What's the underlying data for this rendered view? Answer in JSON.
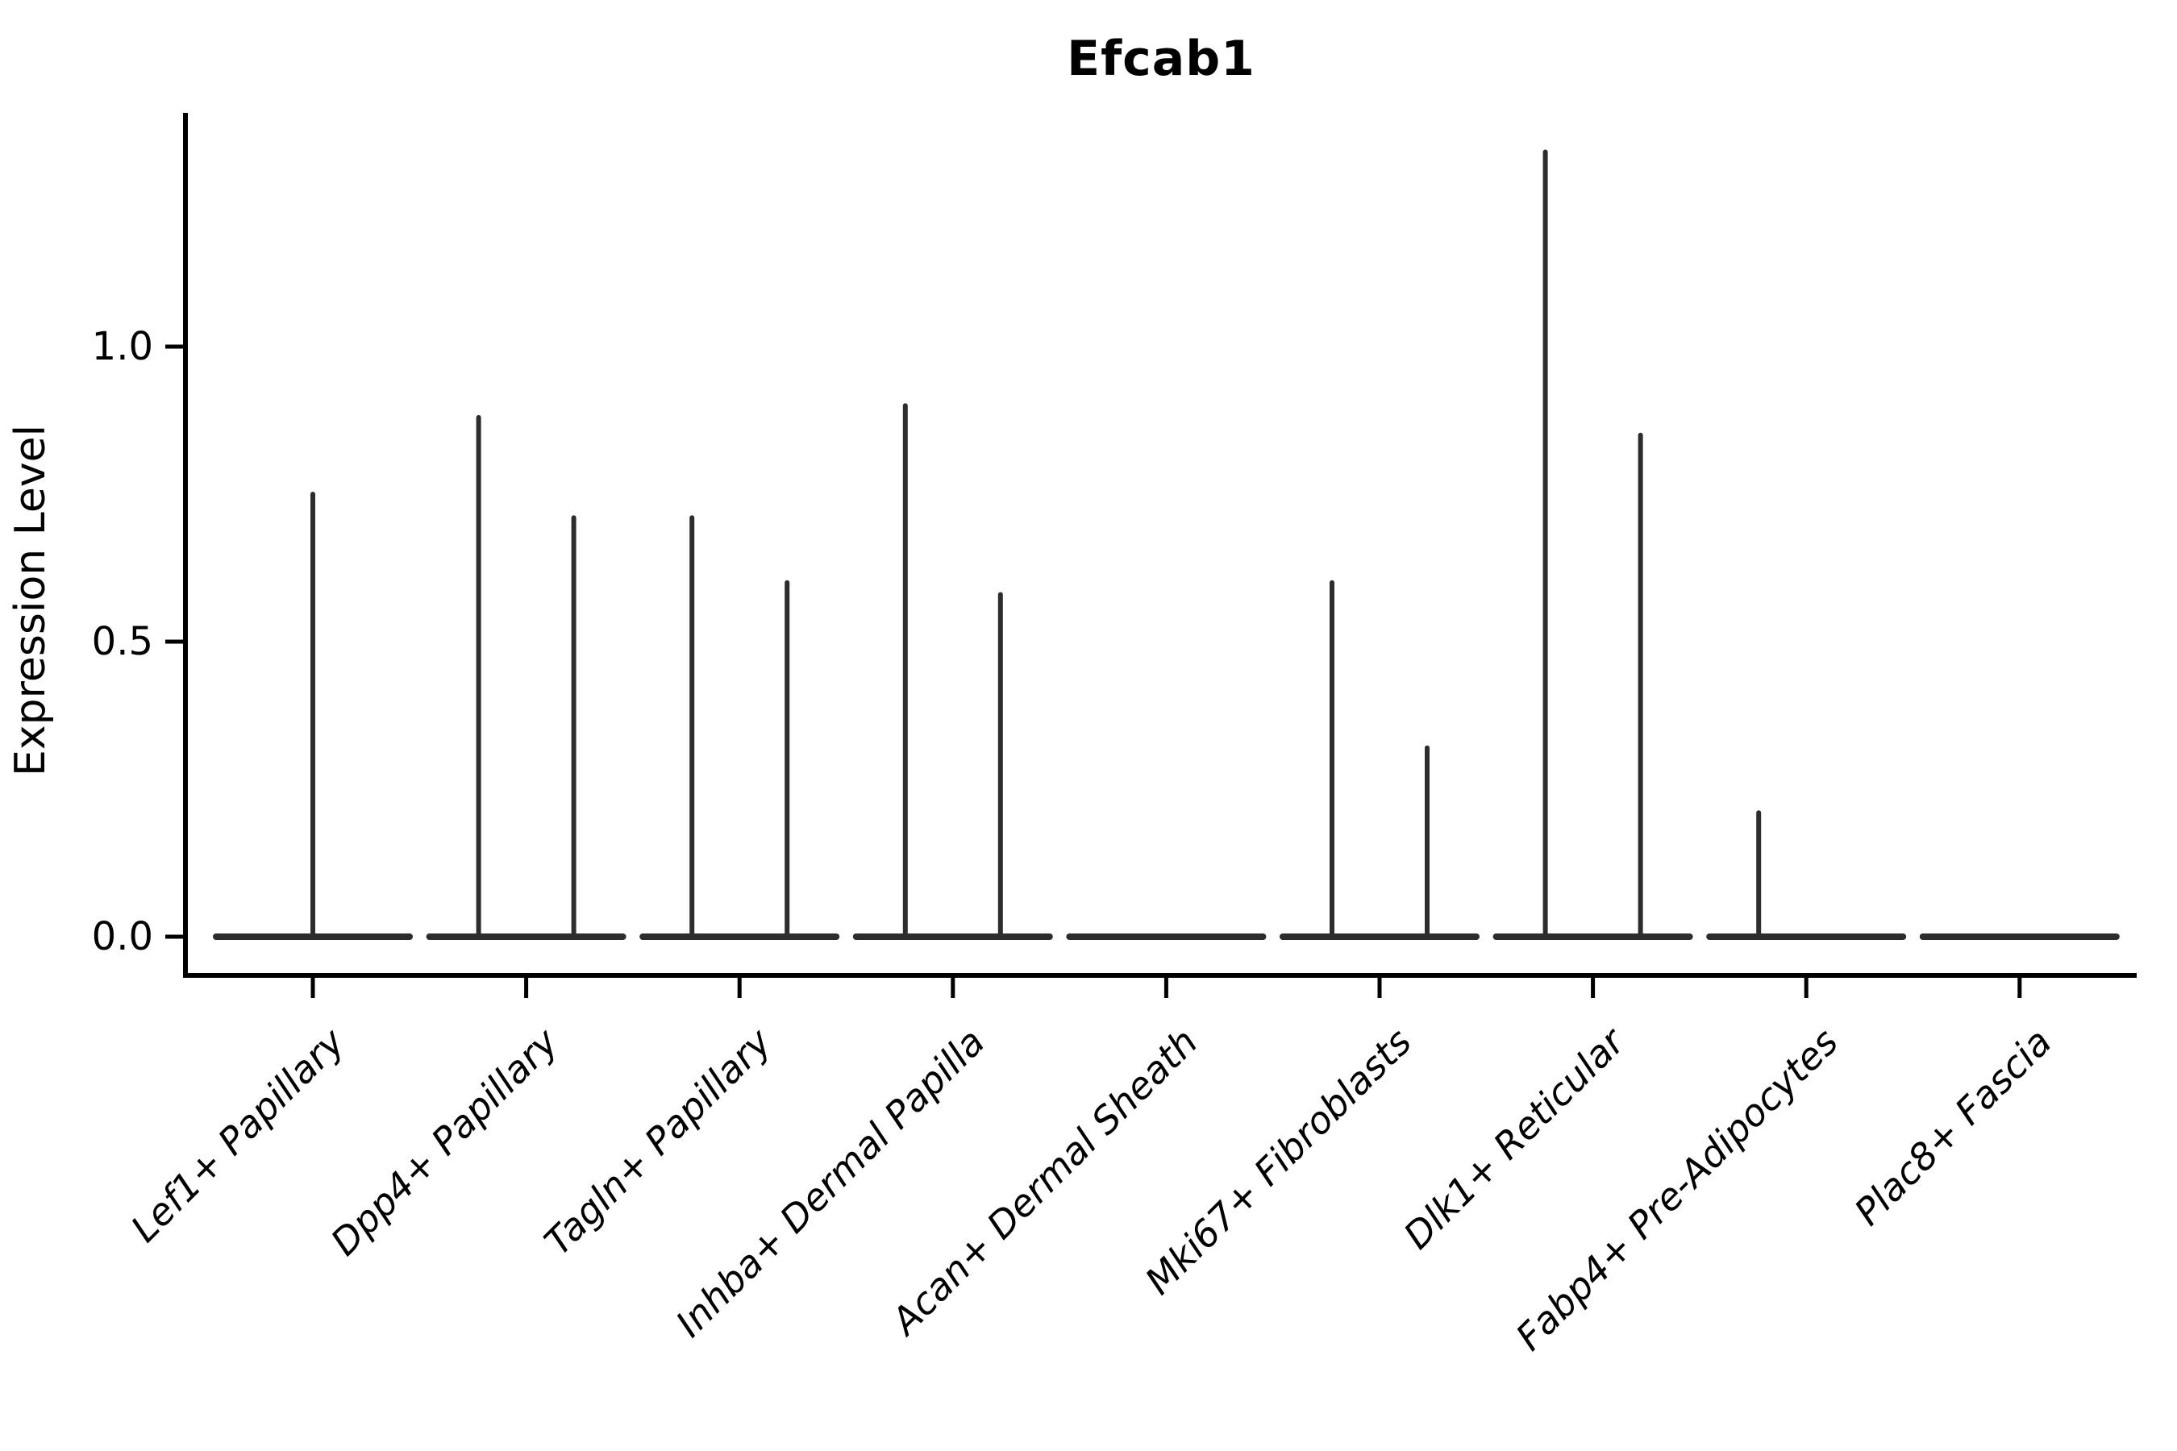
{
  "title": "Efcab1",
  "y_axis": {
    "label": "Expression Level",
    "tick_labels": [
      "1.0",
      "0.5",
      "0.0"
    ]
  },
  "colors": {
    "violin_stroke": "#2d2d2d",
    "axis": "#000000",
    "text": "#000000",
    "background": "#ffffff"
  },
  "chart_data": {
    "type": "violin",
    "title": "Efcab1",
    "xlabel": "",
    "ylabel": "Expression Level",
    "ylim": [
      0,
      1.4
    ],
    "yticks": [
      0.0,
      0.5,
      1.0
    ],
    "grid": false,
    "legend": null,
    "description": "Single-cell expression violin plot; nearly all cells have zero expression so each violin collapses to a flat baseline at 0 with thin vertical density spikes reaching the maximum expression values.",
    "categories": [
      "Lef1+ Papillary",
      "Dpp4+ Papillary",
      "Tagln+ Papillary",
      "Inhba+ Dermal Papilla",
      "Acan+ Dermal Sheath",
      "Mki67+ Fibroblasts",
      "Dlk1+ Reticular",
      "Fabp4+ Pre-Adipocytes",
      "Plac8+ Fascia"
    ],
    "violins": [
      {
        "category": "Lef1+ Papillary",
        "baseline_value": 0.0,
        "spikes": [
          {
            "position": "center",
            "max_expression": 0.75
          }
        ]
      },
      {
        "category": "Dpp4+ Papillary",
        "baseline_value": 0.0,
        "spikes": [
          {
            "position": "left",
            "max_expression": 0.88
          },
          {
            "position": "right",
            "max_expression": 0.71
          }
        ]
      },
      {
        "category": "Tagln+ Papillary",
        "baseline_value": 0.0,
        "spikes": [
          {
            "position": "left",
            "max_expression": 0.71
          },
          {
            "position": "right",
            "max_expression": 0.6
          }
        ]
      },
      {
        "category": "Inhba+ Dermal Papilla",
        "baseline_value": 0.0,
        "spikes": [
          {
            "position": "left",
            "max_expression": 0.9
          },
          {
            "position": "right",
            "max_expression": 0.58
          }
        ]
      },
      {
        "category": "Acan+ Dermal Sheath",
        "baseline_value": 0.0,
        "spikes": []
      },
      {
        "category": "Mki67+ Fibroblasts",
        "baseline_value": 0.0,
        "spikes": [
          {
            "position": "left",
            "max_expression": 0.6
          },
          {
            "position": "right",
            "max_expression": 0.32
          }
        ]
      },
      {
        "category": "Dlk1+ Reticular",
        "baseline_value": 0.0,
        "spikes": [
          {
            "position": "left",
            "max_expression": 1.33
          },
          {
            "position": "right",
            "max_expression": 0.85
          }
        ]
      },
      {
        "category": "Fabp4+ Pre-Adipocytes",
        "baseline_value": 0.0,
        "spikes": [
          {
            "position": "left",
            "max_expression": 0.21
          }
        ]
      },
      {
        "category": "Plac8+ Fascia",
        "baseline_value": 0.0,
        "spikes": []
      }
    ]
  }
}
